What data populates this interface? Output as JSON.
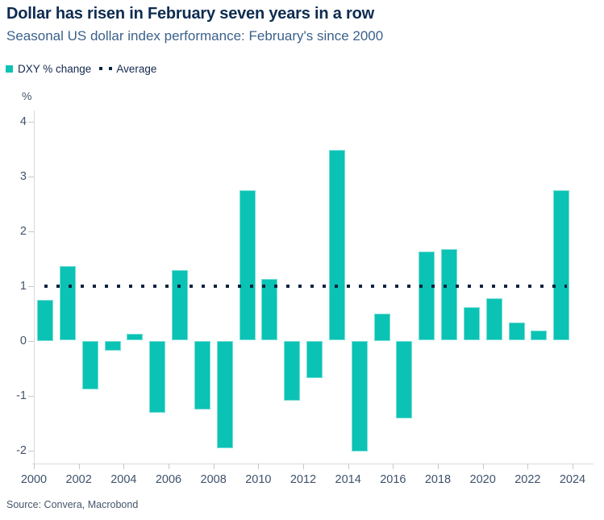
{
  "header": {
    "title": "Dollar has risen in February seven years in a row",
    "subtitle": "Seasonal US dollar index performance: February's since 2000"
  },
  "legend": {
    "series_label": "DXY % change",
    "average_label": "Average"
  },
  "chart_data": {
    "type": "bar",
    "title": "Dollar has risen in February seven years in a row",
    "subtitle": "Seasonal US dollar index performance: February's since 2000",
    "unit_label": "%",
    "series_name": "DXY % change",
    "categories": [
      2000,
      2001,
      2002,
      2003,
      2004,
      2005,
      2006,
      2007,
      2008,
      2009,
      2010,
      2011,
      2012,
      2013,
      2014,
      2015,
      2016,
      2017,
      2018,
      2019,
      2020,
      2021,
      2022,
      2023
    ],
    "values": [
      0.75,
      1.36,
      -0.89,
      -0.19,
      0.12,
      -1.32,
      1.29,
      -1.25,
      -1.96,
      2.74,
      1.13,
      -1.1,
      -0.69,
      3.48,
      -2.02,
      0.5,
      -1.42,
      1.62,
      1.67,
      0.61,
      0.77,
      0.33,
      0.18,
      2.74
    ],
    "average_line": 1.0,
    "ylim": [
      -2.25,
      4.2
    ],
    "yticks": [
      4,
      3,
      2,
      1,
      0,
      -1,
      -2
    ],
    "xticks": [
      2000,
      2002,
      2004,
      2006,
      2008,
      2010,
      2012,
      2014,
      2016,
      2018,
      2020,
      2022,
      2024
    ],
    "grid": false,
    "legend_position": "top-left",
    "bar_color": "#0ac3b4",
    "average_color": "#0d2440"
  },
  "footer": {
    "source": "Source: Convera, Macrobond"
  },
  "colors": {
    "background": "#ffffff",
    "title": "#0e2c51",
    "subtitle": "#3c618c",
    "axis_text": "#44546a",
    "axis_line": "#d7dadd",
    "accent_teal": "#0ac3b4",
    "navy": "#0d2440"
  }
}
